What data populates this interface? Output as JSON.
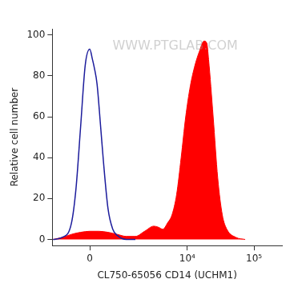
{
  "chart_data": {
    "type": "histogram",
    "x_label": "CL750-65056 CD14 (UCHM1)",
    "y_label": "Relative cell number",
    "annotations": [
      "WWW.PTGLAB.COM"
    ],
    "log": "x",
    "grid": false,
    "xlim": [
      -1160,
      262144
    ],
    "xticks": [
      0,
      {
        "value": 10000,
        "label": "10⁴"
      },
      {
        "value": 100000,
        "label": "10⁵"
      }
    ],
    "ylim": [
      -3,
      103
    ],
    "yticks": [
      0,
      20,
      40,
      60,
      80,
      100
    ],
    "series": [
      {
        "type": "line",
        "color": "#1c1c9c",
        "x": [
          -1125,
          -755,
          -465,
          -339,
          -221,
          -109,
          0,
          65,
          109,
          176,
          266,
          339,
          465,
          608,
          755,
          1125,
          1594
        ],
        "values": [
          0,
          1,
          8,
          25,
          55,
          85,
          93,
          88,
          84,
          76,
          55,
          38,
          15,
          5,
          2,
          0,
          0
        ]
      },
      {
        "type": "area",
        "color": "#ff0000",
        "x": [
          -1125,
          -755,
          -465,
          -221,
          0,
          221,
          465,
          755,
          1125,
          1594,
          2236,
          3105,
          3640,
          4278,
          5017,
          5872,
          6900,
          8070,
          9450,
          11080,
          12970,
          15180,
          17800,
          19580,
          20840,
          24400,
          28570,
          33460,
          39120,
          53700,
          73600
        ],
        "values": [
          0,
          1,
          2.5,
          3.5,
          4,
          4,
          3.5,
          2.5,
          1.5,
          1.5,
          4,
          6.5,
          6,
          5,
          8,
          12,
          22,
          40,
          60,
          75,
          85,
          92,
          97,
          96,
          88,
          60,
          30,
          12,
          5,
          1,
          0
        ]
      }
    ]
  }
}
